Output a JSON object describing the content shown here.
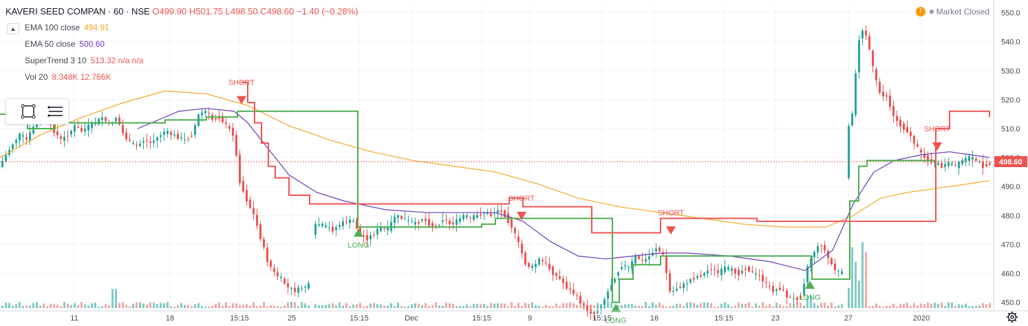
{
  "header": {
    "symbol": "KAVERI SEED COMPAN · 60 · NSE",
    "ohlc": "O499.90 H501.75 L498.50 C498.60 −1.40 (−0.28%)"
  },
  "indicators": [
    {
      "name": "EMA 100 close",
      "value": "494.91",
      "color": "#f5a623"
    },
    {
      "name": "EMA 50 close",
      "value": "500.60",
      "color": "#673ab7"
    },
    {
      "name": "SuperTrend 3 10",
      "value": "513.32 n/a n/a",
      "color": "#ef5350"
    },
    {
      "name": "Vol 20",
      "value": "8.348K 12.766K",
      "color": "#ef5350"
    }
  ],
  "market_status": {
    "warning_icon": "!",
    "label": "Market Closed"
  },
  "icons": {
    "collapse": "chevron-up-icon",
    "tool1": "rectangle-select-icon",
    "tool2": "list-lines-icon",
    "settings": "gear-icon"
  },
  "chart_data": {
    "type": "candlestick",
    "price_axis": {
      "ticks": [
        450,
        460,
        470,
        480,
        490,
        500,
        510,
        520,
        530,
        540,
        550
      ],
      "range": [
        448,
        553
      ],
      "side": "right"
    },
    "time_axis": {
      "labels": [
        "11",
        "18",
        "15:15",
        "25",
        "15:15",
        "Dec",
        "15:15",
        "9",
        "15:15",
        "16",
        "15:15",
        "23",
        "27",
        "2020"
      ]
    },
    "last_price": {
      "value": "498.60",
      "color": "#ef5350"
    },
    "colors": {
      "up": "#26a69a",
      "down": "#ef5350",
      "ema100": "#f5a623",
      "ema50": "#673ab7",
      "st_long": "#4caf50",
      "st_short": "#ef5350",
      "vol_up": "#80cbc4",
      "vol_down": "#f4a7a4"
    },
    "price_path": [
      [
        0,
        497
      ],
      [
        10,
        501
      ],
      [
        20,
        505
      ],
      [
        30,
        508
      ],
      [
        40,
        506
      ],
      [
        50,
        511
      ],
      [
        60,
        515
      ],
      [
        70,
        512
      ],
      [
        80,
        509
      ],
      [
        90,
        506
      ],
      [
        100,
        508
      ],
      [
        110,
        511
      ],
      [
        120,
        509
      ],
      [
        130,
        511
      ],
      [
        140,
        512
      ],
      [
        150,
        514
      ],
      [
        160,
        511
      ],
      [
        170,
        514
      ],
      [
        180,
        508
      ],
      [
        190,
        505
      ],
      [
        200,
        504
      ],
      [
        210,
        506
      ],
      [
        220,
        505
      ],
      [
        230,
        507
      ],
      [
        240,
        509
      ],
      [
        250,
        508
      ],
      [
        260,
        507
      ],
      [
        270,
        506
      ],
      [
        280,
        508
      ],
      [
        290,
        515
      ],
      [
        300,
        516
      ],
      [
        310,
        513
      ],
      [
        320,
        514
      ],
      [
        330,
        511
      ],
      [
        340,
        508
      ],
      [
        350,
        491
      ],
      [
        360,
        485
      ],
      [
        370,
        480
      ],
      [
        380,
        472
      ],
      [
        390,
        464
      ],
      [
        400,
        460
      ],
      [
        410,
        458
      ],
      [
        420,
        455
      ],
      [
        430,
        454
      ],
      [
        440,
        455
      ],
      [
        450,
        456
      ],
      [
        455,
        476
      ],
      [
        465,
        477
      ],
      [
        475,
        476
      ],
      [
        485,
        475
      ],
      [
        495,
        477
      ],
      [
        505,
        478
      ],
      [
        515,
        478
      ],
      [
        525,
        473
      ],
      [
        535,
        472
      ],
      [
        545,
        474
      ],
      [
        555,
        476
      ],
      [
        565,
        475
      ],
      [
        575,
        480
      ],
      [
        585,
        479
      ],
      [
        595,
        478
      ],
      [
        605,
        477
      ],
      [
        615,
        479
      ],
      [
        625,
        477
      ],
      [
        635,
        476
      ],
      [
        645,
        479
      ],
      [
        655,
        477
      ],
      [
        665,
        478
      ],
      [
        675,
        480
      ],
      [
        685,
        479
      ],
      [
        695,
        480
      ],
      [
        705,
        481
      ],
      [
        715,
        480
      ],
      [
        725,
        482
      ],
      [
        735,
        480
      ],
      [
        745,
        476
      ],
      [
        755,
        470
      ],
      [
        765,
        463
      ],
      [
        775,
        462
      ],
      [
        785,
        465
      ],
      [
        795,
        463
      ],
      [
        805,
        460
      ],
      [
        815,
        458
      ],
      [
        825,
        455
      ],
      [
        835,
        453
      ],
      [
        845,
        450
      ],
      [
        855,
        447
      ],
      [
        865,
        446
      ],
      [
        875,
        449
      ],
      [
        885,
        454
      ],
      [
        895,
        459
      ],
      [
        905,
        463
      ],
      [
        915,
        462
      ],
      [
        925,
        466
      ],
      [
        935,
        464
      ],
      [
        945,
        466
      ],
      [
        955,
        469
      ],
      [
        965,
        466
      ],
      [
        975,
        453
      ],
      [
        985,
        455
      ],
      [
        995,
        456
      ],
      [
        1005,
        458
      ],
      [
        1015,
        459
      ],
      [
        1025,
        460
      ],
      [
        1035,
        462
      ],
      [
        1045,
        460
      ],
      [
        1055,
        462
      ],
      [
        1065,
        461
      ],
      [
        1075,
        460
      ],
      [
        1085,
        462
      ],
      [
        1095,
        460
      ],
      [
        1105,
        459
      ],
      [
        1115,
        456
      ],
      [
        1125,
        454
      ],
      [
        1135,
        455
      ],
      [
        1145,
        452
      ],
      [
        1155,
        451
      ],
      [
        1165,
        452
      ],
      [
        1175,
        463
      ],
      [
        1185,
        468
      ],
      [
        1195,
        470
      ],
      [
        1205,
        465
      ],
      [
        1215,
        461
      ],
      [
        1225,
        460
      ],
      [
        1232,
        510
      ],
      [
        1240,
        515
      ],
      [
        1248,
        540
      ],
      [
        1256,
        545
      ],
      [
        1264,
        538
      ],
      [
        1272,
        528
      ],
      [
        1280,
        522
      ],
      [
        1290,
        521
      ],
      [
        1300,
        514
      ],
      [
        1310,
        511
      ],
      [
        1320,
        509
      ],
      [
        1330,
        505
      ],
      [
        1340,
        501
      ],
      [
        1350,
        499
      ],
      [
        1360,
        498
      ],
      [
        1370,
        497
      ],
      [
        1380,
        498
      ],
      [
        1390,
        497
      ],
      [
        1400,
        499
      ],
      [
        1410,
        500
      ],
      [
        1420,
        499
      ],
      [
        1430,
        497
      ],
      [
        1438,
        498
      ]
    ],
    "ema100": [
      [
        0,
        500
      ],
      [
        60,
        508
      ],
      [
        120,
        514
      ],
      [
        180,
        519
      ],
      [
        240,
        523
      ],
      [
        300,
        522
      ],
      [
        360,
        518
      ],
      [
        420,
        511
      ],
      [
        480,
        506
      ],
      [
        540,
        502
      ],
      [
        600,
        499
      ],
      [
        660,
        497
      ],
      [
        720,
        495
      ],
      [
        780,
        491
      ],
      [
        840,
        486
      ],
      [
        900,
        483
      ],
      [
        960,
        481
      ],
      [
        1020,
        479
      ],
      [
        1080,
        477
      ],
      [
        1140,
        476
      ],
      [
        1200,
        476
      ],
      [
        1240,
        480
      ],
      [
        1280,
        486
      ],
      [
        1320,
        488
      ],
      [
        1380,
        490
      ],
      [
        1438,
        492
      ]
    ],
    "ema50": [
      [
        200,
        510
      ],
      [
        260,
        516
      ],
      [
        300,
        517
      ],
      [
        340,
        516
      ],
      [
        360,
        512
      ],
      [
        390,
        503
      ],
      [
        420,
        494
      ],
      [
        460,
        488
      ],
      [
        500,
        485
      ],
      [
        560,
        482
      ],
      [
        620,
        481
      ],
      [
        680,
        481
      ],
      [
        720,
        481
      ],
      [
        760,
        478
      ],
      [
        800,
        471
      ],
      [
        840,
        466
      ],
      [
        880,
        465
      ],
      [
        920,
        466
      ],
      [
        960,
        467
      ],
      [
        1000,
        467
      ],
      [
        1060,
        466
      ],
      [
        1120,
        464
      ],
      [
        1170,
        461
      ],
      [
        1210,
        468
      ],
      [
        1240,
        484
      ],
      [
        1270,
        495
      ],
      [
        1300,
        499
      ],
      [
        1340,
        501
      ],
      [
        1380,
        502
      ],
      [
        1438,
        500
      ]
    ],
    "supertrend_long": [
      [
        0,
        515
      ],
      [
        40,
        510
      ],
      [
        80,
        512
      ],
      [
        160,
        512
      ],
      [
        240,
        513
      ],
      [
        300,
        514
      ],
      [
        345,
        516
      ],
      [
        350,
        516
      ],
      [
        520,
        476
      ],
      [
        600,
        476
      ],
      [
        680,
        476
      ],
      [
        700,
        477
      ],
      [
        720,
        479
      ],
      [
        755,
        479
      ],
      [
        890,
        450
      ],
      [
        900,
        458
      ],
      [
        920,
        463
      ],
      [
        960,
        466
      ],
      [
        975,
        466
      ],
      [
        1180,
        458
      ],
      [
        1225,
        458
      ],
      [
        1235,
        485
      ],
      [
        1248,
        497
      ],
      [
        1260,
        499
      ],
      [
        1360,
        499
      ]
    ],
    "supertrend_short": [
      [
        350,
        526
      ],
      [
        360,
        519
      ],
      [
        370,
        512
      ],
      [
        380,
        505
      ],
      [
        390,
        497
      ],
      [
        400,
        493
      ],
      [
        420,
        487
      ],
      [
        450,
        484
      ],
      [
        480,
        484
      ],
      [
        520,
        484
      ],
      [
        525,
        484
      ],
      [
        740,
        486
      ],
      [
        760,
        483
      ],
      [
        800,
        483
      ],
      [
        860,
        474
      ],
      [
        890,
        474
      ],
      [
        960,
        479
      ],
      [
        975,
        479
      ],
      [
        1100,
        478
      ],
      [
        1175,
        478
      ],
      [
        1360,
        510
      ],
      [
        1380,
        516
      ],
      [
        1420,
        516
      ],
      [
        1438,
        514
      ]
    ],
    "signals": [
      {
        "type": "SHORT",
        "price": 526,
        "label": "SHORT"
      },
      {
        "type": "LONG",
        "price": 476,
        "label": "LONG"
      },
      {
        "type": "SHORT",
        "price": 486,
        "label": "SHORT"
      },
      {
        "type": "LONG",
        "price": 450,
        "label": "LONG"
      },
      {
        "type": "SHORT",
        "price": 481,
        "label": "SHORT"
      },
      {
        "type": "LONG",
        "price": 458,
        "label": "LONG"
      },
      {
        "type": "SHORT",
        "price": 510,
        "label": "SHORT"
      }
    ]
  }
}
